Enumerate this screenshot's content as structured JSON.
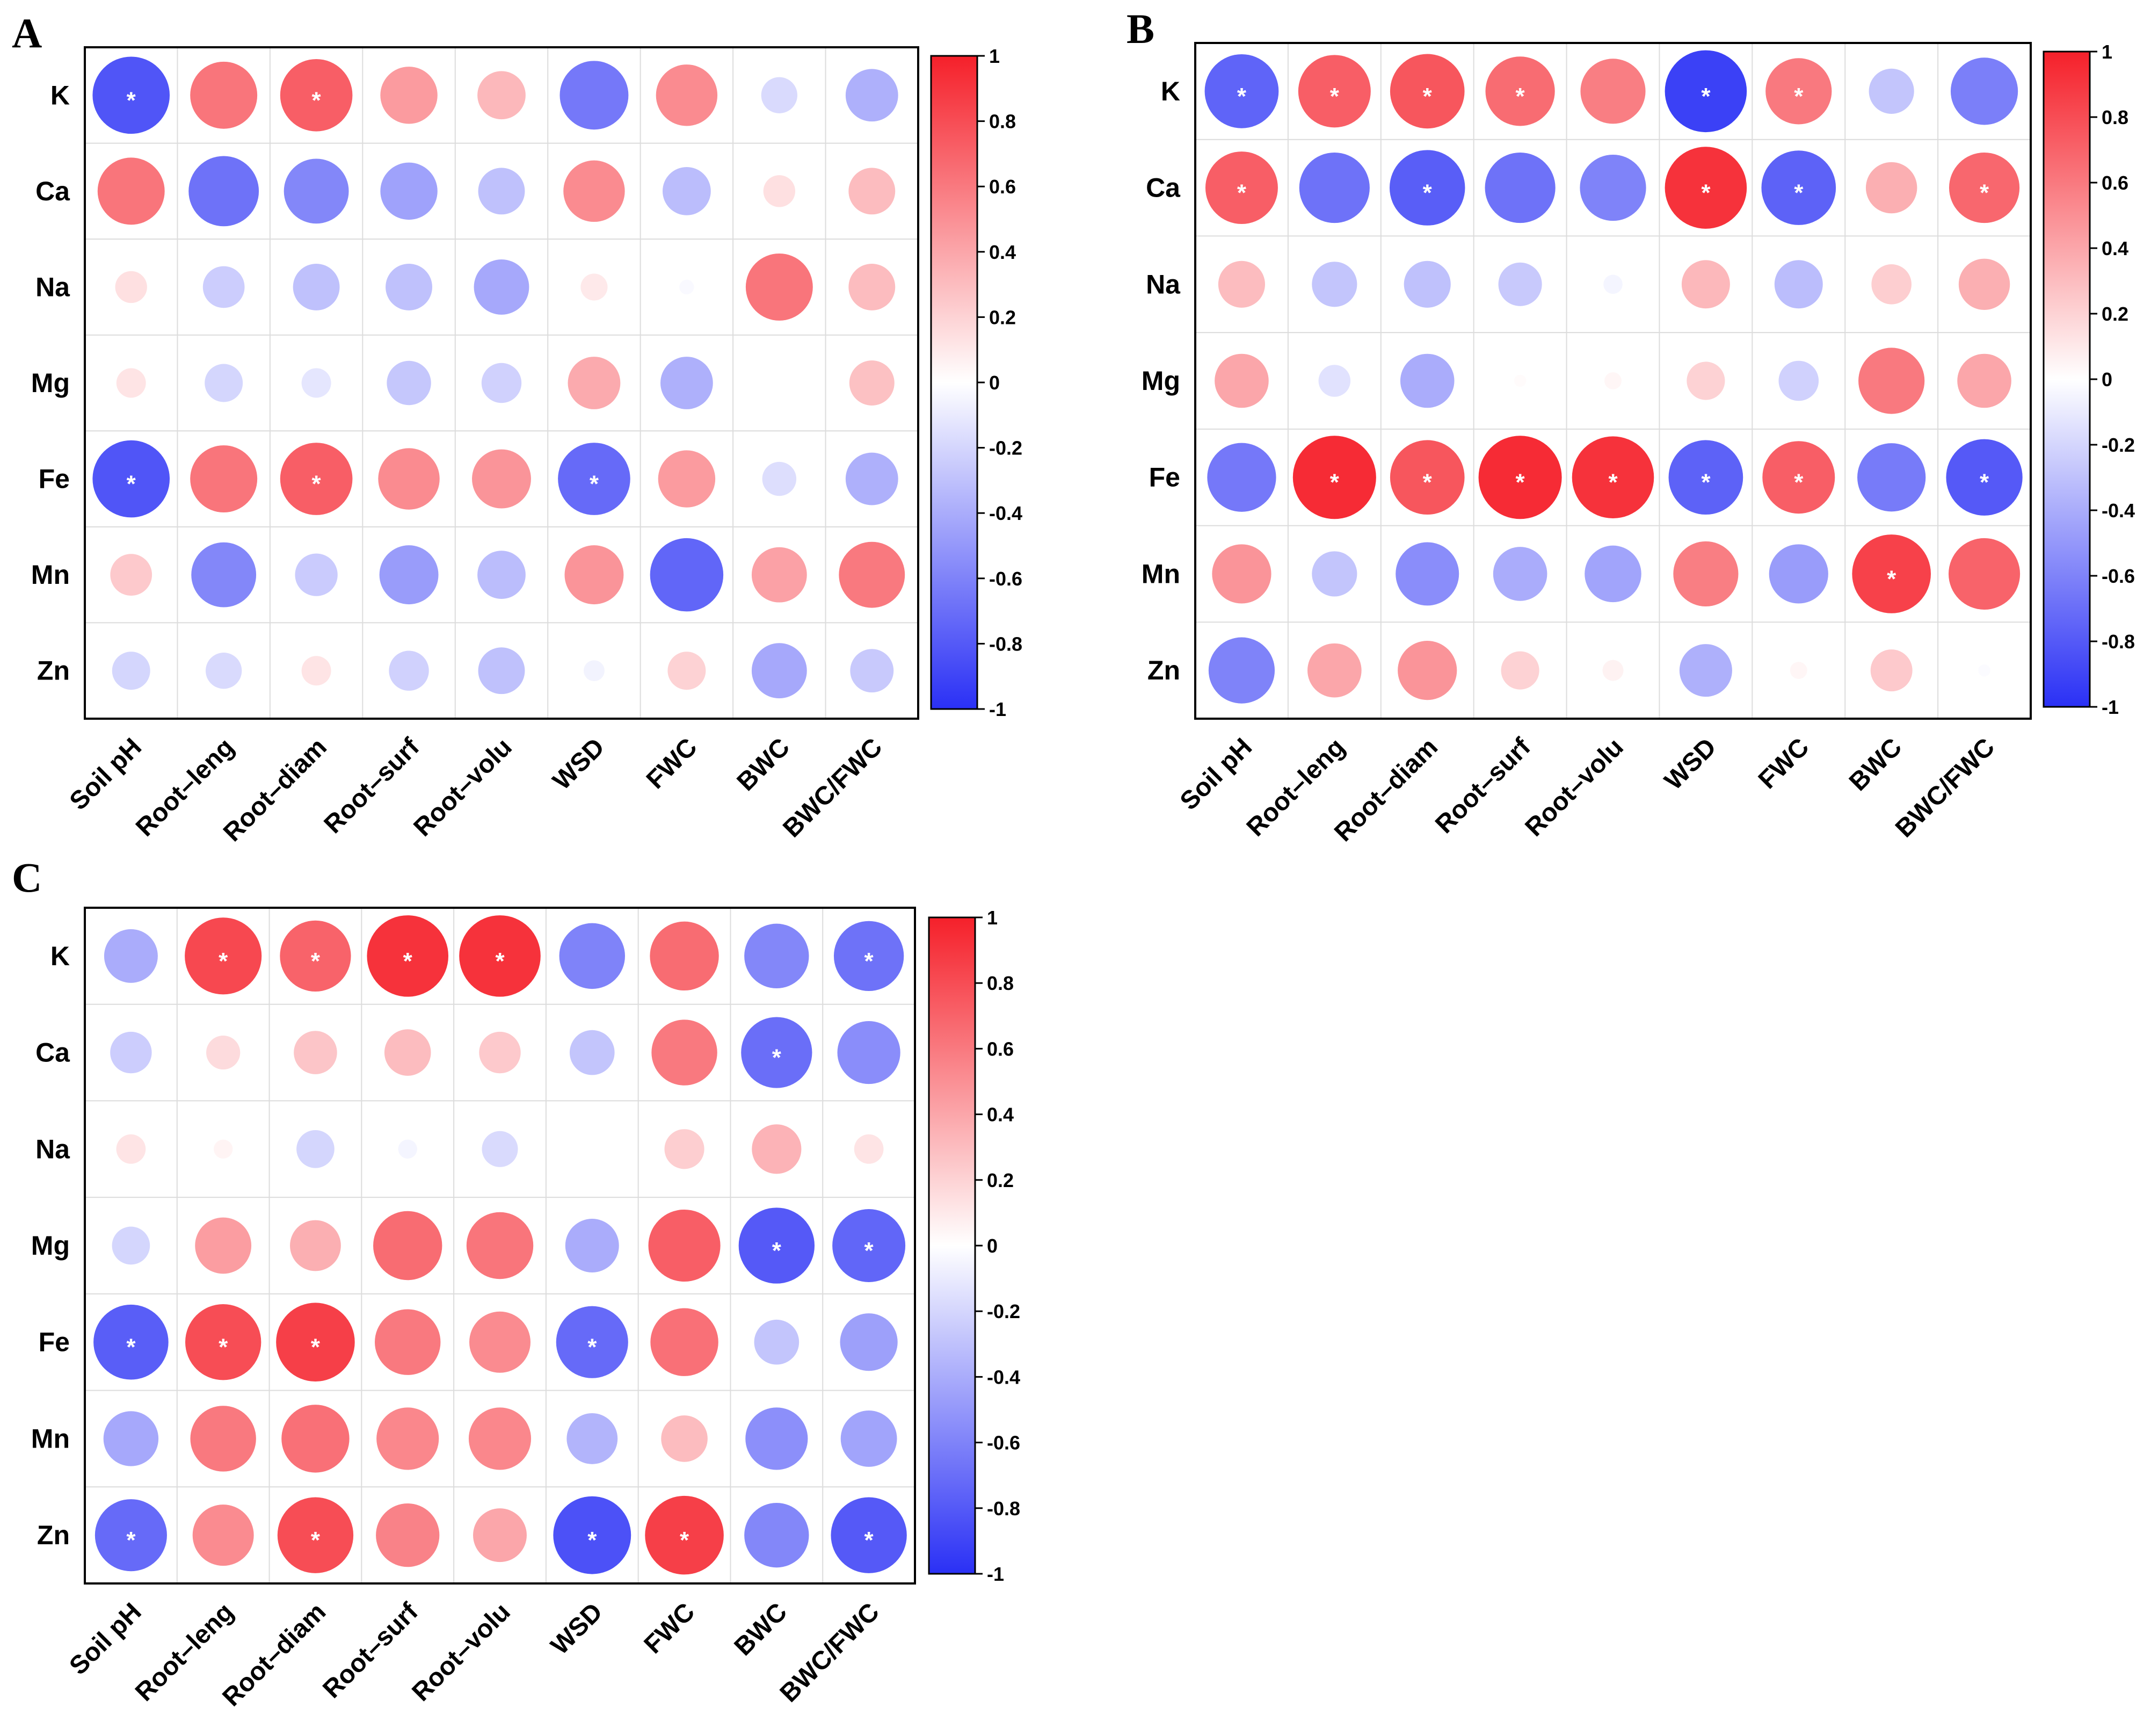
{
  "chart_data": [
    {
      "type": "heatmap",
      "panel": "A",
      "rows": [
        "K",
        "Ca",
        "Na",
        "Mg",
        "Fe",
        "Mn",
        "Zn"
      ],
      "columns": [
        "Soil pH",
        "Root–leng",
        "Root–diam",
        "Root–surf",
        "Root–volu",
        "WSD",
        "FWC",
        "BWC",
        "BWC/FWC"
      ],
      "values": [
        [
          -0.82,
          0.62,
          0.72,
          0.45,
          0.32,
          -0.65,
          0.52,
          -0.18,
          -0.38
        ],
        [
          0.62,
          -0.68,
          -0.58,
          -0.45,
          -0.3,
          0.52,
          -0.32,
          0.14,
          0.3
        ],
        [
          0.14,
          -0.24,
          -0.3,
          -0.3,
          -0.42,
          0.1,
          -0.03,
          0.62,
          0.3
        ],
        [
          0.12,
          -0.2,
          -0.12,
          -0.27,
          -0.22,
          0.38,
          -0.38,
          0.0,
          0.28
        ],
        [
          -0.82,
          0.62,
          0.72,
          0.52,
          0.48,
          -0.72,
          0.45,
          -0.16,
          -0.38
        ],
        [
          0.24,
          -0.58,
          -0.25,
          -0.48,
          -0.32,
          0.48,
          -0.74,
          0.42,
          0.6
        ],
        [
          -0.2,
          -0.18,
          0.12,
          -0.22,
          -0.3,
          -0.06,
          0.2,
          -0.42,
          -0.26
        ]
      ],
      "significant": [
        [
          0,
          0
        ],
        [
          0,
          2
        ],
        [
          4,
          0
        ],
        [
          4,
          2
        ],
        [
          4,
          5
        ]
      ],
      "colorbar": {
        "range": [
          -1,
          1
        ],
        "ticks": [
          "1",
          "0.8",
          "0.6",
          "0.4",
          "0.2",
          "0",
          "-0.2",
          "-0.4",
          "-0.6",
          "-0.8",
          "-1"
        ],
        "colors": {
          "positive": "#f5202a",
          "neutral": "#ffffff",
          "negative": "#2a30f5"
        }
      }
    },
    {
      "type": "heatmap",
      "panel": "B",
      "rows": [
        "K",
        "Ca",
        "Na",
        "Mg",
        "Fe",
        "Mn",
        "Zn"
      ],
      "columns": [
        "Soil pH",
        "Root–leng",
        "Root–diam",
        "Root–surf",
        "Root–volu",
        "WSD",
        "FWC",
        "BWC",
        "BWC/FWC"
      ],
      "values": [
        [
          -0.75,
          0.72,
          0.76,
          0.66,
          0.58,
          -0.92,
          0.6,
          -0.28,
          -0.62
        ],
        [
          0.72,
          -0.68,
          -0.78,
          -0.68,
          -0.6,
          0.92,
          -0.76,
          0.36,
          0.68
        ],
        [
          0.3,
          -0.28,
          -0.3,
          -0.26,
          -0.05,
          0.32,
          -0.32,
          0.22,
          0.36
        ],
        [
          0.4,
          -0.14,
          -0.4,
          0.02,
          0.04,
          0.2,
          -0.22,
          0.6,
          0.4
        ],
        [
          -0.65,
          0.95,
          0.76,
          0.95,
          0.92,
          -0.76,
          0.72,
          -0.64,
          -0.8
        ],
        [
          0.48,
          -0.28,
          -0.55,
          -0.4,
          -0.44,
          0.58,
          -0.48,
          0.85,
          0.7
        ],
        [
          -0.6,
          0.4,
          0.48,
          0.2,
          0.06,
          -0.38,
          0.04,
          0.24,
          -0.02
        ]
      ],
      "significant": [
        [
          0,
          0
        ],
        [
          0,
          1
        ],
        [
          0,
          2
        ],
        [
          0,
          3
        ],
        [
          0,
          5
        ],
        [
          0,
          6
        ],
        [
          1,
          0
        ],
        [
          1,
          2
        ],
        [
          1,
          5
        ],
        [
          1,
          6
        ],
        [
          1,
          8
        ],
        [
          4,
          1
        ],
        [
          4,
          2
        ],
        [
          4,
          3
        ],
        [
          4,
          4
        ],
        [
          4,
          5
        ],
        [
          4,
          6
        ],
        [
          4,
          8
        ],
        [
          5,
          7
        ]
      ],
      "colorbar": {
        "range": [
          -1,
          1
        ],
        "ticks": [
          "1",
          "0.8",
          "0.6",
          "0.4",
          "0.2",
          "0",
          "-0.2",
          "-0.4",
          "-0.6",
          "-0.8",
          "-1"
        ],
        "colors": {
          "positive": "#f5202a",
          "neutral": "#ffffff",
          "negative": "#2a30f5"
        }
      }
    },
    {
      "type": "heatmap",
      "panel": "C",
      "rows": [
        "K",
        "Ca",
        "Na",
        "Mg",
        "Fe",
        "Mn",
        "Zn"
      ],
      "columns": [
        "Soil pH",
        "Root–leng",
        "Root–diam",
        "Root–surf",
        "Root–volu",
        "WSD",
        "FWC",
        "BWC",
        "BWC/FWC"
      ],
      "values": [
        [
          -0.4,
          0.82,
          0.7,
          0.92,
          0.92,
          -0.6,
          0.66,
          -0.58,
          -0.68
        ],
        [
          -0.24,
          0.16,
          0.26,
          0.3,
          0.24,
          -0.28,
          0.6,
          -0.7,
          -0.55
        ],
        [
          0.12,
          0.05,
          -0.2,
          -0.05,
          -0.18,
          0.0,
          0.22,
          0.34,
          0.12
        ],
        [
          -0.2,
          0.44,
          0.36,
          0.66,
          0.62,
          -0.4,
          0.72,
          -0.8,
          -0.74
        ],
        [
          -0.78,
          0.8,
          0.86,
          0.6,
          0.52,
          -0.72,
          0.64,
          -0.28,
          -0.46
        ],
        [
          -0.42,
          0.6,
          0.64,
          0.54,
          0.54,
          -0.36,
          0.3,
          -0.54,
          -0.44
        ],
        [
          -0.72,
          0.52,
          0.8,
          0.56,
          0.4,
          -0.84,
          0.86,
          -0.58,
          -0.8
        ]
      ],
      "significant": [
        [
          0,
          1
        ],
        [
          0,
          2
        ],
        [
          0,
          3
        ],
        [
          0,
          4
        ],
        [
          0,
          8
        ],
        [
          1,
          7
        ],
        [
          3,
          7
        ],
        [
          3,
          8
        ],
        [
          4,
          0
        ],
        [
          4,
          1
        ],
        [
          4,
          2
        ],
        [
          4,
          5
        ],
        [
          6,
          0
        ],
        [
          6,
          2
        ],
        [
          6,
          5
        ],
        [
          6,
          6
        ],
        [
          6,
          8
        ]
      ],
      "colorbar": {
        "range": [
          -1,
          1
        ],
        "ticks": [
          "1",
          "0.8",
          "0.6",
          "0.4",
          "0.2",
          "0",
          "-0.2",
          "-0.4",
          "-0.6",
          "-0.8",
          "-1"
        ],
        "colors": {
          "positive": "#f5202a",
          "neutral": "#ffffff",
          "negative": "#2a30f5"
        }
      }
    }
  ]
}
